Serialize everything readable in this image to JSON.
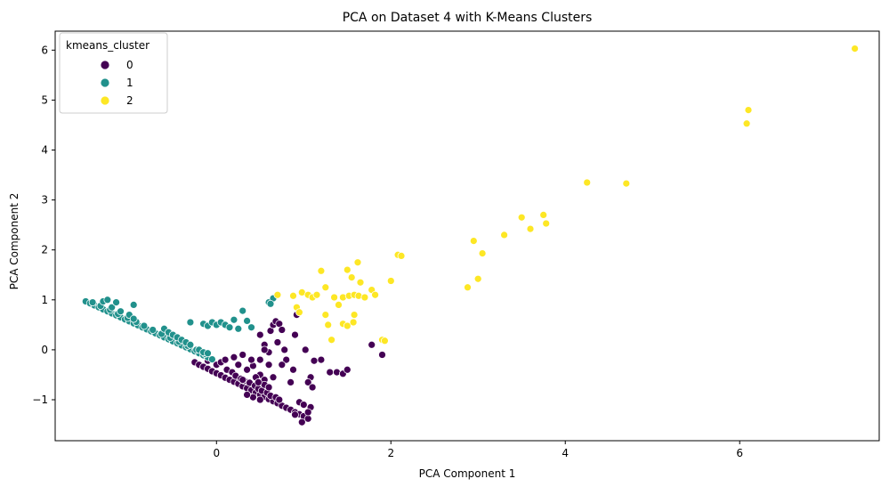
{
  "chart_data": {
    "type": "scatter",
    "title": "PCA on Dataset 4 with K-Means Clusters",
    "xlabel": "PCA Component 1",
    "ylabel": "PCA Component 2",
    "xlim": [
      -1.85,
      7.6
    ],
    "ylim": [
      -1.82,
      6.38
    ],
    "xticks": [
      0,
      2,
      4,
      6
    ],
    "yticks": [
      -1,
      0,
      1,
      2,
      3,
      4,
      5,
      6
    ],
    "xtick_labels": [
      "0",
      "2",
      "4",
      "6"
    ],
    "ytick_labels": [
      "−1",
      "0",
      "1",
      "2",
      "3",
      "4",
      "5",
      "6"
    ],
    "grid": false,
    "legend": {
      "title": "kmeans_cluster",
      "placement": "upper-left"
    },
    "series": [
      {
        "name": "0",
        "color": "#440154",
        "points": [
          [
            -0.25,
            -0.25
          ],
          [
            -0.2,
            -0.3
          ],
          [
            -0.15,
            -0.34
          ],
          [
            -0.1,
            -0.38
          ],
          [
            -0.05,
            -0.43
          ],
          [
            0.0,
            -0.47
          ],
          [
            0.05,
            -0.51
          ],
          [
            0.1,
            -0.56
          ],
          [
            0.15,
            -0.6
          ],
          [
            0.2,
            -0.64
          ],
          [
            0.25,
            -0.68
          ],
          [
            0.3,
            -0.73
          ],
          [
            0.35,
            -0.77
          ],
          [
            0.4,
            -0.81
          ],
          [
            0.45,
            -0.86
          ],
          [
            0.5,
            -0.9
          ],
          [
            0.55,
            -0.94
          ],
          [
            0.6,
            -0.99
          ],
          [
            0.65,
            -1.03
          ],
          [
            0.7,
            -1.07
          ],
          [
            0.75,
            -1.12
          ],
          [
            0.8,
            -1.16
          ],
          [
            0.85,
            -1.2
          ],
          [
            0.9,
            -1.25
          ],
          [
            0.95,
            -1.29
          ],
          [
            1.0,
            -1.33
          ],
          [
            1.05,
            -1.38
          ],
          [
            0.98,
            -1.45
          ],
          [
            -0.1,
            -0.22
          ],
          [
            0.0,
            -0.3
          ],
          [
            0.05,
            -0.25
          ],
          [
            0.12,
            -0.4
          ],
          [
            0.18,
            -0.45
          ],
          [
            0.22,
            -0.52
          ],
          [
            0.28,
            -0.58
          ],
          [
            0.32,
            -0.62
          ],
          [
            0.38,
            -0.66
          ],
          [
            0.44,
            -0.72
          ],
          [
            0.48,
            -0.78
          ],
          [
            0.52,
            -0.82
          ],
          [
            0.58,
            -0.86
          ],
          [
            0.62,
            -0.92
          ],
          [
            0.68,
            -0.95
          ],
          [
            0.72,
            -1.0
          ],
          [
            0.1,
            -0.2
          ],
          [
            0.2,
            -0.15
          ],
          [
            0.3,
            -0.1
          ],
          [
            0.35,
            -0.4
          ],
          [
            0.42,
            -0.32
          ],
          [
            0.5,
            -0.5
          ],
          [
            0.55,
            -0.6
          ],
          [
            0.45,
            -0.55
          ],
          [
            0.4,
            -0.2
          ],
          [
            0.6,
            -0.3
          ],
          [
            0.25,
            -0.3
          ],
          [
            0.5,
            -0.2
          ],
          [
            0.55,
            -0.7
          ],
          [
            0.6,
            -0.75
          ],
          [
            0.65,
            -0.55
          ],
          [
            0.48,
            -0.65
          ],
          [
            0.42,
            -0.95
          ],
          [
            0.5,
            -1.0
          ],
          [
            0.35,
            -0.9
          ],
          [
            0.3,
            -0.6
          ],
          [
            0.5,
            0.3
          ],
          [
            0.55,
            0.1
          ],
          [
            0.6,
            -0.05
          ],
          [
            0.62,
            0.38
          ],
          [
            0.65,
            0.5
          ],
          [
            0.68,
            0.57
          ],
          [
            0.72,
            0.52
          ],
          [
            0.75,
            0.4
          ],
          [
            0.78,
            0.0
          ],
          [
            0.8,
            -0.2
          ],
          [
            0.85,
            -0.65
          ],
          [
            0.88,
            -0.4
          ],
          [
            0.92,
            0.7
          ],
          [
            1.02,
            0.0
          ],
          [
            1.08,
            -0.55
          ],
          [
            1.12,
            -0.22
          ],
          [
            1.2,
            -0.2
          ],
          [
            1.05,
            -0.65
          ],
          [
            1.1,
            -0.75
          ],
          [
            1.08,
            -1.15
          ],
          [
            1.05,
            -1.25
          ],
          [
            0.95,
            -1.05
          ],
          [
            1.0,
            -1.1
          ],
          [
            0.9,
            -1.3
          ],
          [
            1.3,
            -0.45
          ],
          [
            1.38,
            -0.45
          ],
          [
            1.45,
            -0.48
          ],
          [
            1.5,
            -0.4
          ],
          [
            1.9,
            -0.1
          ],
          [
            1.78,
            0.1
          ],
          [
            0.9,
            0.3
          ],
          [
            0.7,
            0.15
          ],
          [
            0.75,
            -0.3
          ],
          [
            0.55,
            0.0
          ]
        ]
      },
      {
        "name": "1",
        "color": "#21918c",
        "points": [
          [
            -1.5,
            0.97
          ],
          [
            -1.45,
            0.93
          ],
          [
            -1.4,
            0.89
          ],
          [
            -1.35,
            0.85
          ],
          [
            -1.3,
            0.81
          ],
          [
            -1.25,
            0.77
          ],
          [
            -1.2,
            0.73
          ],
          [
            -1.15,
            0.69
          ],
          [
            -1.1,
            0.65
          ],
          [
            -1.05,
            0.61
          ],
          [
            -1.0,
            0.57
          ],
          [
            -0.95,
            0.53
          ],
          [
            -0.9,
            0.49
          ],
          [
            -0.85,
            0.45
          ],
          [
            -0.8,
            0.41
          ],
          [
            -0.75,
            0.37
          ],
          [
            -0.7,
            0.33
          ],
          [
            -0.65,
            0.29
          ],
          [
            -0.6,
            0.25
          ],
          [
            -0.55,
            0.21
          ],
          [
            -0.5,
            0.17
          ],
          [
            -0.45,
            0.13
          ],
          [
            -0.4,
            0.09
          ],
          [
            -0.35,
            0.05
          ],
          [
            -0.3,
            0.01
          ],
          [
            -0.25,
            -0.03
          ],
          [
            -0.2,
            -0.07
          ],
          [
            -0.15,
            -0.11
          ],
          [
            -0.1,
            -0.15
          ],
          [
            -0.05,
            -0.19
          ],
          [
            -1.42,
            0.95
          ],
          [
            -1.33,
            0.88
          ],
          [
            -1.22,
            0.8
          ],
          [
            -1.13,
            0.72
          ],
          [
            -1.02,
            0.64
          ],
          [
            -0.92,
            0.56
          ],
          [
            -0.83,
            0.48
          ],
          [
            -0.73,
            0.4
          ],
          [
            -0.63,
            0.32
          ],
          [
            -0.53,
            0.24
          ],
          [
            -0.43,
            0.16
          ],
          [
            -0.33,
            0.08
          ],
          [
            -0.23,
            0.0
          ],
          [
            -0.13,
            -0.08
          ],
          [
            -1.3,
            0.97
          ],
          [
            -1.25,
            1.0
          ],
          [
            -1.2,
            0.85
          ],
          [
            -1.15,
            0.95
          ],
          [
            -1.1,
            0.77
          ],
          [
            -1.0,
            0.7
          ],
          [
            -0.95,
            0.9
          ],
          [
            -0.95,
            0.62
          ],
          [
            -0.6,
            0.42
          ],
          [
            -0.55,
            0.35
          ],
          [
            -0.5,
            0.3
          ],
          [
            -0.45,
            0.25
          ],
          [
            -0.4,
            0.2
          ],
          [
            -0.35,
            0.15
          ],
          [
            -0.3,
            0.1
          ],
          [
            -0.2,
            0.0
          ],
          [
            -0.15,
            -0.05
          ],
          [
            -0.1,
            -0.07
          ],
          [
            -0.3,
            0.55
          ],
          [
            -0.15,
            0.52
          ],
          [
            -0.1,
            0.48
          ],
          [
            -0.05,
            0.55
          ],
          [
            0.0,
            0.5
          ],
          [
            0.05,
            0.55
          ],
          [
            0.1,
            0.5
          ],
          [
            0.15,
            0.45
          ],
          [
            0.2,
            0.6
          ],
          [
            0.25,
            0.42
          ],
          [
            0.3,
            0.78
          ],
          [
            0.35,
            0.58
          ],
          [
            0.4,
            0.45
          ],
          [
            0.6,
            0.95
          ],
          [
            0.65,
            1.03
          ],
          [
            0.62,
            0.92
          ]
        ]
      },
      {
        "name": "2",
        "color": "#fde725",
        "points": [
          [
            7.32,
            6.03
          ],
          [
            6.1,
            4.8
          ],
          [
            6.08,
            4.53
          ],
          [
            4.25,
            3.35
          ],
          [
            4.7,
            3.33
          ],
          [
            3.5,
            2.65
          ],
          [
            3.6,
            2.42
          ],
          [
            3.75,
            2.7
          ],
          [
            3.78,
            2.53
          ],
          [
            3.3,
            2.3
          ],
          [
            2.95,
            2.18
          ],
          [
            3.05,
            1.93
          ],
          [
            2.88,
            1.25
          ],
          [
            3.0,
            1.42
          ],
          [
            2.08,
            1.9
          ],
          [
            2.12,
            1.88
          ],
          [
            2.0,
            1.38
          ],
          [
            1.62,
            1.75
          ],
          [
            1.5,
            1.6
          ],
          [
            1.55,
            1.45
          ],
          [
            1.2,
            1.58
          ],
          [
            1.25,
            1.25
          ],
          [
            1.35,
            1.05
          ],
          [
            1.4,
            0.9
          ],
          [
            1.45,
            1.05
          ],
          [
            1.52,
            1.08
          ],
          [
            1.58,
            1.1
          ],
          [
            1.63,
            1.08
          ],
          [
            1.65,
            1.35
          ],
          [
            1.7,
            1.05
          ],
          [
            1.78,
            1.2
          ],
          [
            1.82,
            1.1
          ],
          [
            1.9,
            0.2
          ],
          [
            1.93,
            0.18
          ],
          [
            0.7,
            1.1
          ],
          [
            0.88,
            1.08
          ],
          [
            0.98,
            1.15
          ],
          [
            1.05,
            1.1
          ],
          [
            1.1,
            1.05
          ],
          [
            1.15,
            1.1
          ],
          [
            0.92,
            0.85
          ],
          [
            0.95,
            0.75
          ],
          [
            1.28,
            0.5
          ],
          [
            1.25,
            0.7
          ],
          [
            1.32,
            0.2
          ],
          [
            1.45,
            0.52
          ],
          [
            1.5,
            0.48
          ],
          [
            1.57,
            0.55
          ],
          [
            1.58,
            0.7
          ]
        ]
      }
    ]
  }
}
